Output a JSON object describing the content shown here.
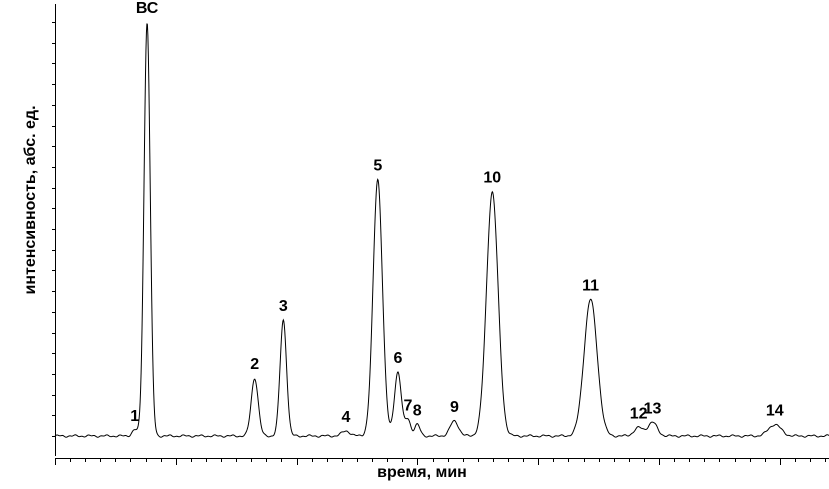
{
  "chart_data": {
    "type": "line",
    "title": "",
    "xlabel": "время, мин",
    "ylabel": "интенсивность, абс. ед.",
    "grid": false,
    "legend": "none",
    "xlim": [
      0,
      100
    ],
    "ylim": [
      0,
      100
    ],
    "baseline": 0,
    "peaks": [
      {
        "label": "1",
        "x": 10.3,
        "height": 1.5,
        "width": 0.35
      },
      {
        "label": "ВС",
        "x": 11.9,
        "height": 100,
        "width": 0.4
      },
      {
        "label": "2",
        "x": 25.8,
        "height": 14.0,
        "width": 0.45
      },
      {
        "label": "3",
        "x": 29.5,
        "height": 28.0,
        "width": 0.42
      },
      {
        "label": "4",
        "x": 37.6,
        "height": 1.2,
        "width": 0.55
      },
      {
        "label": "5",
        "x": 41.7,
        "height": 62.0,
        "width": 0.6
      },
      {
        "label": "6",
        "x": 44.3,
        "height": 15.5,
        "width": 0.45
      },
      {
        "label": "7",
        "x": 45.6,
        "height": 4.0,
        "width": 0.35
      },
      {
        "label": "8",
        "x": 46.8,
        "height": 2.8,
        "width": 0.35
      },
      {
        "label": "9",
        "x": 51.6,
        "height": 3.6,
        "width": 0.55
      },
      {
        "label": "10",
        "x": 56.5,
        "height": 59.0,
        "width": 0.75
      },
      {
        "label": "11",
        "x": 69.2,
        "height": 33.0,
        "width": 0.85
      },
      {
        "label": "12",
        "x": 75.4,
        "height": 2.0,
        "width": 0.6
      },
      {
        "label": "13",
        "x": 77.2,
        "height": 3.3,
        "width": 0.6
      },
      {
        "label": "14",
        "x": 93.0,
        "height": 2.8,
        "width": 0.8
      }
    ]
  }
}
